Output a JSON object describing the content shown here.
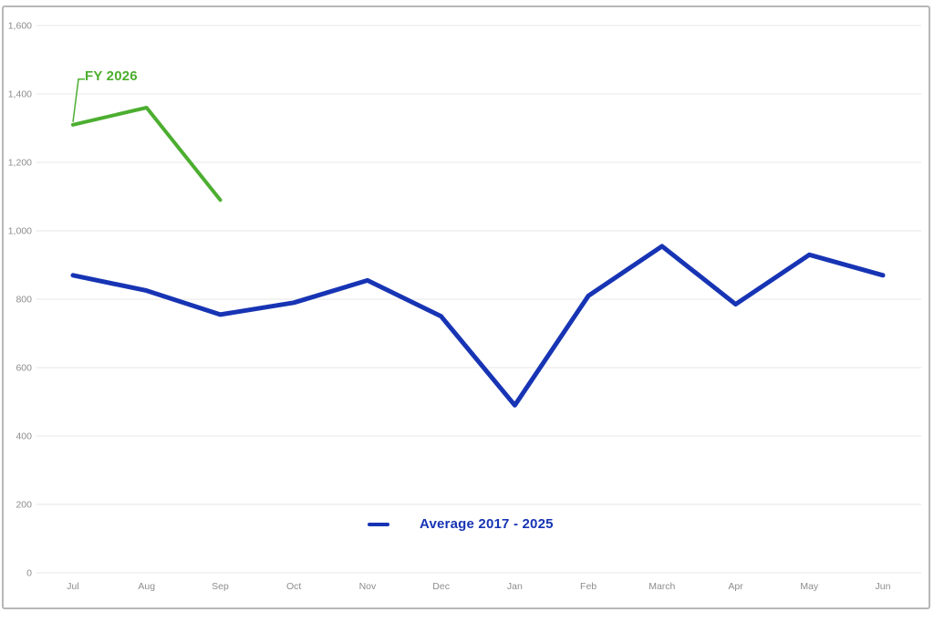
{
  "chart_data": {
    "type": "line",
    "categories": [
      "Jul",
      "Aug",
      "Sep",
      "Oct",
      "Nov",
      "Dec",
      "Jan",
      "Feb",
      "March",
      "Apr",
      "May",
      "Jun"
    ],
    "series": [
      {
        "name": "FY 2026",
        "color": "#4cae30",
        "stroke_width": 4,
        "values": [
          1310,
          1360,
          1090,
          null,
          null,
          null,
          null,
          null,
          null,
          null,
          null,
          null
        ]
      },
      {
        "name": "Average 2017 - 2025",
        "color": "#1734b4",
        "stroke_width": 5,
        "values": [
          870,
          825,
          755,
          790,
          855,
          750,
          490,
          810,
          955,
          785,
          930,
          870
        ]
      }
    ],
    "title": "",
    "xlabel": "",
    "ylabel": "",
    "ylim": [
      0,
      1600
    ],
    "ytick_step": 200,
    "ytick_labels": [
      "0",
      "200",
      "400",
      "600",
      "800",
      "1,000",
      "1,200",
      "1,400",
      "1,600"
    ],
    "grid": true,
    "legend": {
      "label": "Average 2017 - 2025",
      "position": "bottom-center",
      "color": "#1734b4"
    },
    "annotation": {
      "label": "FY 2026",
      "series": "FY 2026",
      "point_index": 0,
      "color": "#4cae30"
    }
  },
  "style_colors": {
    "axis_text": "#8d8d8d",
    "gridline": "#e7e7e7",
    "card_border": "#b7b7b7",
    "background": "#ffffff"
  }
}
